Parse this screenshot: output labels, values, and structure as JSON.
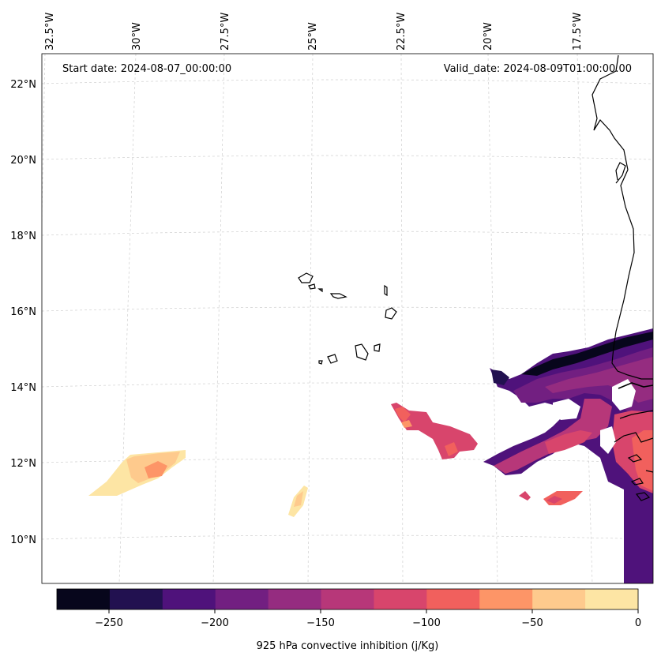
{
  "map": {
    "start_date": "Start date: 2024-08-07_00:00:00",
    "valid_date": "Valid_date: 2024-08-09T01:00:00.00",
    "lon_labels": [
      "32.5°W",
      "30°W",
      "27.5°W",
      "25°W",
      "22.5°W",
      "20°W",
      "17.5°W"
    ],
    "lat_labels": [
      "22°N",
      "20°N",
      "18°N",
      "16°N",
      "14°N",
      "12°N",
      "10°N"
    ]
  },
  "colorbar": {
    "label": "925 hPa convective inhibition (j/Kg)",
    "ticks": [
      "−250",
      "−200",
      "−150",
      "−100",
      "−50",
      "0"
    ],
    "bounds": [
      -275,
      0
    ],
    "colors": [
      "#07061c",
      "#221150",
      "#4f127b",
      "#721f81",
      "#952c80",
      "#b73779",
      "#d8456c",
      "#f1605d",
      "#fd9567",
      "#feca8d",
      "#fde5a4"
    ]
  },
  "chart_data": {
    "type": "heatmap",
    "title": "",
    "variable": "925 hPa convective inhibition (j/Kg)",
    "levels": [
      -275,
      -250,
      -225,
      -200,
      -175,
      -150,
      -125,
      -100,
      -75,
      -50,
      -25,
      0
    ],
    "lon_range": [
      -33,
      -16.5
    ],
    "lat_range": [
      9,
      22.5
    ]
  }
}
